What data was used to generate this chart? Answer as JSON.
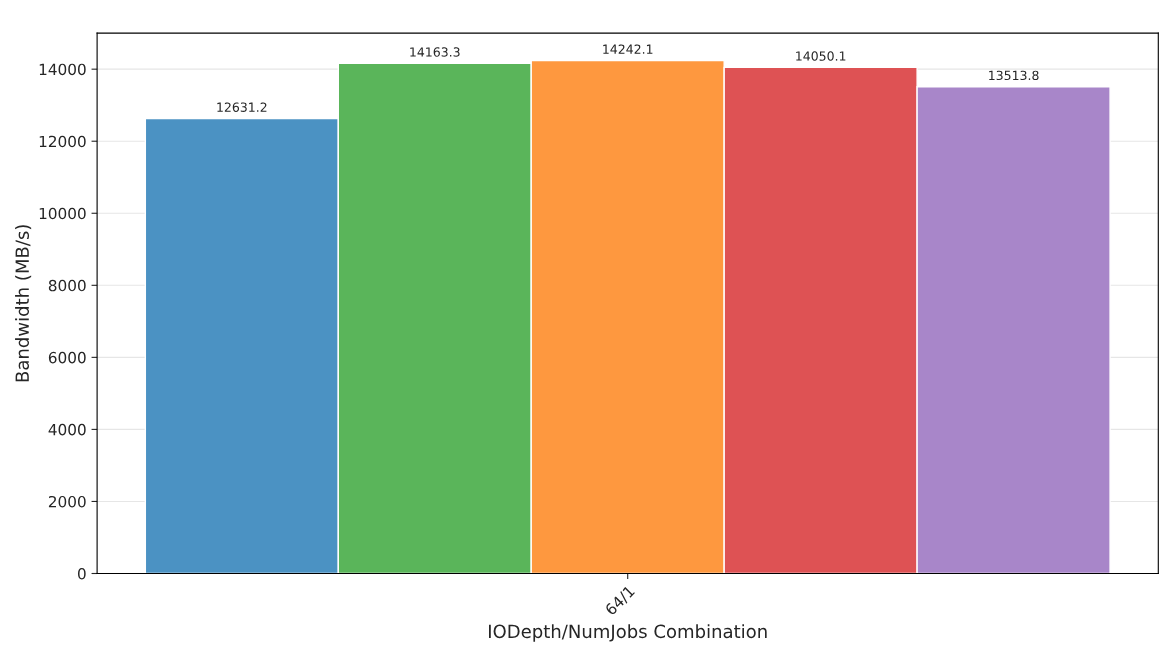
{
  "chart_data": {
    "type": "bar",
    "xlabel": "IODepth/NumJobs Combination",
    "ylabel": "Bandwidth (MB/s)",
    "categories": [
      "64/1"
    ],
    "series": [
      {
        "color": "#4b92c3",
        "values": [
          12631.2
        ]
      },
      {
        "color": "#5ab55a",
        "values": [
          14163.3
        ]
      },
      {
        "color": "#fe983f",
        "values": [
          14242.1
        ]
      },
      {
        "color": "#de5254",
        "values": [
          14050.1
        ]
      },
      {
        "color": "#a886c9",
        "values": [
          13513.8
        ]
      }
    ],
    "ylim": [
      0,
      15000
    ],
    "yticks": [
      0,
      2000,
      4000,
      6000,
      8000,
      10000,
      12000,
      14000
    ],
    "grid": "y",
    "data_labels": true
  }
}
